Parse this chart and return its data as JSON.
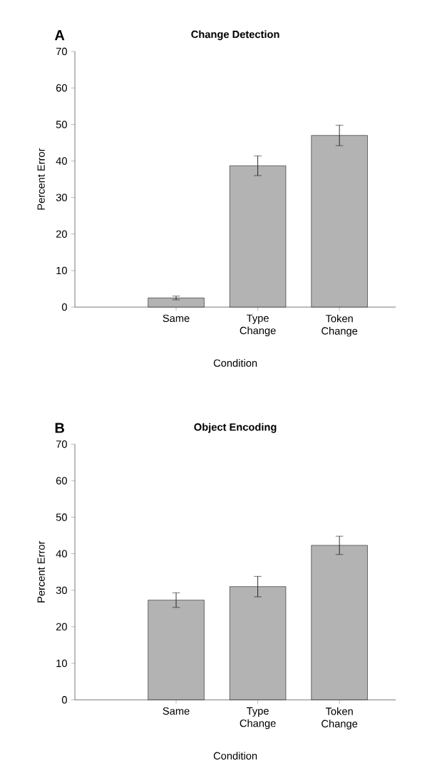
{
  "chart_data": [
    {
      "type": "bar",
      "title": "Change Detection",
      "annotations": [
        "A"
      ],
      "categories": [
        "Same",
        "Type Change",
        "Token Change"
      ],
      "values": [
        2.5,
        38.7,
        47
      ],
      "errors": [
        0.5,
        2.7,
        2.8
      ],
      "color": "#b3b3b3",
      "xlabel": "Condition",
      "ylabel": "Percent Error",
      "ylim": [
        0,
        70
      ],
      "yticks": [
        0,
        10,
        20,
        30,
        40,
        50,
        60,
        70
      ]
    },
    {
      "type": "bar",
      "title": "Object Encoding",
      "annotations": [
        "B"
      ],
      "categories": [
        "Same",
        "Type Change",
        "Token Change"
      ],
      "values": [
        27.3,
        31,
        42.3
      ],
      "errors": [
        2,
        2.8,
        2.5
      ],
      "color": "#b3b3b3",
      "xlabel": "Condition",
      "ylabel": "Percent Error",
      "ylim": [
        0,
        70
      ],
      "yticks": [
        0,
        10,
        20,
        30,
        40,
        50,
        60,
        70
      ]
    }
  ]
}
